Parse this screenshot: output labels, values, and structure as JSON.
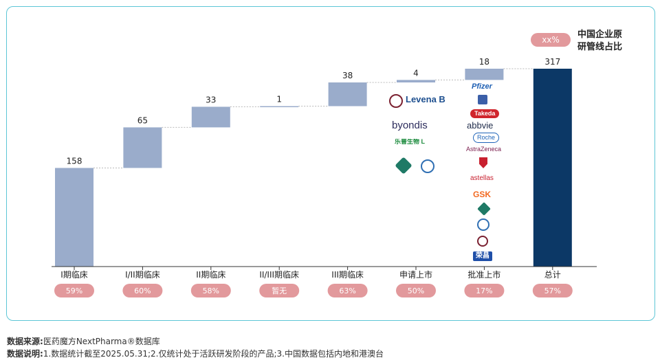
{
  "chart_data": {
    "type": "bar",
    "subtype": "waterfall",
    "categories": [
      "I期临床",
      "I/II期临床",
      "II期临床",
      "II/III期临床",
      "III期临床",
      "申请上市",
      "批准上市",
      "总计"
    ],
    "values": [
      158,
      65,
      33,
      1,
      38,
      4,
      18,
      317
    ],
    "percent_labels": [
      "59%",
      "60%",
      "58%",
      "暂无",
      "63%",
      "50%",
      "17%",
      "57%"
    ],
    "legend_badge": "xx%",
    "legend_text_line1": "中国企业原",
    "legend_text_line2": "研管线占比",
    "ylim": [
      0,
      317
    ],
    "colors": {
      "step": "#9aaccb",
      "total": "#0c3866",
      "badge": "#e2999c",
      "frame": "#5cc6d6"
    }
  },
  "logos": {
    "application": [
      "Levena Biopharma",
      "byondis",
      "乐普生物 LEPU BIOTECH",
      "Daiichi-Sankyo"
    ],
    "approved": [
      "Pfizer",
      "seagen",
      "Takeda",
      "abbvie",
      "Roche",
      "AstraZeneca",
      "Gilead",
      "astellas",
      "GSK",
      "Daiichi-Sankyo",
      "荣昌"
    ]
  },
  "footer": {
    "source_label": "数据来源:",
    "source_text": "医药魔方NextPharma®数据库",
    "note_label": "数据说明:",
    "note_text": "1.数据统计截至2025.05.31;2.仅统计处于活跃研发阶段的产品;3.中国数据包括内地和港澳台"
  }
}
